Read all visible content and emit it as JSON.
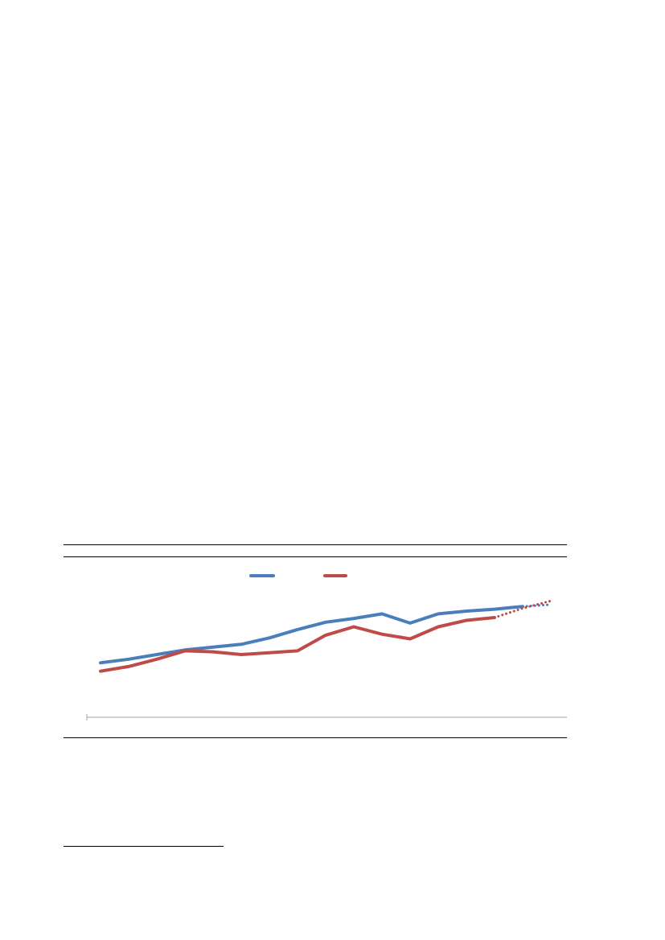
{
  "colors": {
    "series_1": "#4a7ebb",
    "series_2": "#be4b48",
    "axis": "#bfbfbf",
    "rule": "#000000"
  },
  "chart_data": {
    "type": "line",
    "title": "",
    "xlabel": "",
    "ylabel": "",
    "x": [
      1,
      2,
      3,
      4,
      5,
      6,
      7,
      8,
      9,
      10,
      11,
      12,
      13,
      14,
      15,
      16,
      17
    ],
    "ylim": [
      0,
      100
    ],
    "grid": false,
    "legend": "top-center",
    "series": [
      {
        "color": "#4a7ebb",
        "style": "solid-then-dotted",
        "values": [
          31,
          35,
          40,
          45,
          48,
          51,
          58,
          67,
          75,
          79,
          84,
          74,
          84,
          87,
          89,
          92,
          null
        ],
        "projected_values": [
          null,
          null,
          null,
          null,
          null,
          null,
          null,
          null,
          null,
          null,
          null,
          null,
          null,
          null,
          null,
          92,
          94
        ]
      },
      {
        "color": "#be4b48",
        "style": "solid-then-dotted",
        "values": [
          22,
          27,
          35,
          44,
          43,
          40,
          42,
          44,
          61,
          70,
          62,
          57,
          70,
          77,
          80,
          null,
          null
        ],
        "projected_values": [
          null,
          null,
          null,
          null,
          null,
          null,
          null,
          null,
          null,
          null,
          null,
          null,
          null,
          null,
          80,
          90,
          98
        ]
      }
    ]
  }
}
